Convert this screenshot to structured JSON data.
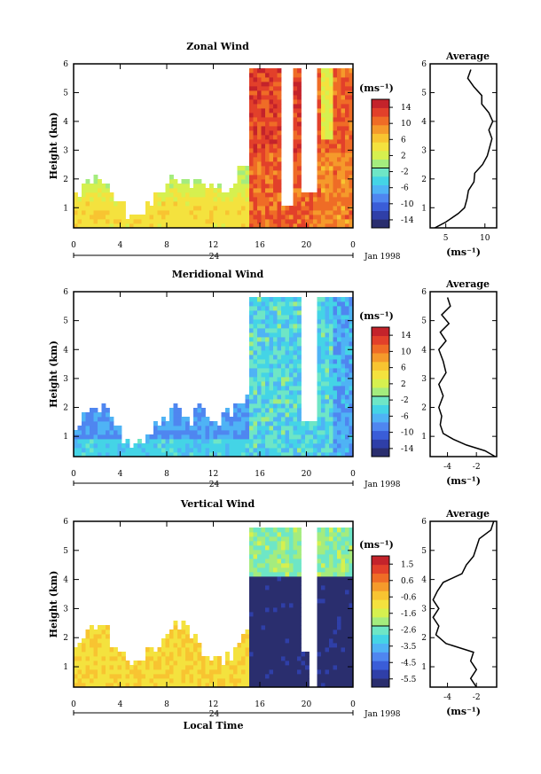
{
  "chart_data": [
    {
      "type": "heatmap",
      "title": "Zonal Wind",
      "ylabel": "Height (km)",
      "x_ticks": [
        "0",
        "4",
        "8",
        "12",
        "16",
        "20",
        "0"
      ],
      "y_ticks": [
        "1",
        "2",
        "3",
        "4",
        "5",
        "6"
      ],
      "xlim": [
        0,
        24
      ],
      "ylim": [
        0.3,
        6
      ],
      "date_label": "Jan 1998",
      "day_marker": "24",
      "colorbar": {
        "unit": "(ms⁻¹)",
        "ticks": [
          "14",
          "10",
          "6",
          "2",
          "-2",
          "-6",
          "-10",
          "-14"
        ],
        "range": [
          -16,
          16
        ]
      },
      "profile": {
        "title": "Average",
        "x_ticks": [
          "5",
          "10"
        ],
        "xlim": [
          3,
          11.5
        ],
        "xlabel": "(ms⁻¹)",
        "height": [
          0.3,
          0.5,
          0.8,
          1.0,
          1.3,
          1.6,
          1.9,
          2.2,
          2.5,
          2.8,
          3.1,
          3.4,
          3.7,
          4.0,
          4.3,
          4.6,
          4.9,
          5.2,
          5.5,
          5.8
        ],
        "value": [
          3.6,
          5.0,
          6.6,
          7.4,
          7.7,
          7.9,
          8.6,
          8.7,
          9.7,
          10.3,
          10.6,
          10.9,
          10.5,
          11.0,
          10.5,
          9.6,
          9.6,
          8.6,
          7.8,
          8.2
        ]
      }
    },
    {
      "type": "heatmap",
      "title": "Meridional Wind",
      "ylabel": "Height (km)",
      "x_ticks": [
        "0",
        "4",
        "8",
        "12",
        "16",
        "20",
        "0"
      ],
      "y_ticks": [
        "1",
        "2",
        "3",
        "4",
        "5",
        "6"
      ],
      "xlim": [
        0,
        24
      ],
      "ylim": [
        0.3,
        6
      ],
      "date_label": "Jan 1998",
      "day_marker": "24",
      "colorbar": {
        "unit": "(ms⁻¹)",
        "ticks": [
          "14",
          "10",
          "6",
          "2",
          "-2",
          "-6",
          "-10",
          "-14"
        ],
        "range": [
          -16,
          16
        ]
      },
      "profile": {
        "title": "Average",
        "x_ticks": [
          "-4",
          "-2"
        ],
        "xlim": [
          -5.2,
          -0.6
        ],
        "xlabel": "(ms⁻¹)",
        "height": [
          0.3,
          0.5,
          0.7,
          0.9,
          1.1,
          1.4,
          1.7,
          2.0,
          2.4,
          2.8,
          3.2,
          3.6,
          4.0,
          4.3,
          4.6,
          4.9,
          5.2,
          5.5,
          5.8
        ],
        "value": [
          -0.7,
          -1.4,
          -2.7,
          -3.6,
          -4.3,
          -4.5,
          -4.4,
          -4.6,
          -4.3,
          -4.6,
          -4.1,
          -4.3,
          -4.6,
          -4.1,
          -4.5,
          -3.9,
          -4.4,
          -3.8,
          -4.0
        ]
      }
    },
    {
      "type": "heatmap",
      "title": "Vertical Wind",
      "ylabel": "Height (km)",
      "xlabel": "Local Time",
      "x_ticks": [
        "0",
        "4",
        "8",
        "12",
        "16",
        "20",
        "0"
      ],
      "y_ticks": [
        "1",
        "2",
        "3",
        "4",
        "5",
        "6"
      ],
      "xlim": [
        0,
        24
      ],
      "ylim": [
        0.3,
        6
      ],
      "date_label": "Jan 1998",
      "day_marker": "24",
      "colorbar": {
        "unit": "(ms⁻¹)",
        "ticks": [
          "1.5",
          "0.6",
          "-0.6",
          "-1.6",
          "-2.6",
          "-3.5",
          "-4.5",
          "-5.5"
        ],
        "range": [
          -6,
          2
        ]
      },
      "profile": {
        "title": "Average",
        "x_ticks": [
          "-4",
          "-2"
        ],
        "xlim": [
          -5.2,
          -0.6
        ],
        "xlabel": "(ms⁻¹)",
        "height": [
          0.3,
          0.6,
          0.9,
          1.2,
          1.5,
          1.8,
          2.1,
          2.4,
          2.7,
          3.0,
          3.3,
          3.6,
          3.9,
          4.2,
          4.5,
          4.8,
          5.1,
          5.4,
          5.7,
          6.0
        ],
        "value": [
          -2.0,
          -2.4,
          -2.0,
          -2.4,
          -2.2,
          -4.1,
          -4.8,
          -4.6,
          -5.0,
          -4.6,
          -5.0,
          -4.7,
          -4.3,
          -3.0,
          -2.7,
          -2.2,
          -2.0,
          -1.8,
          -1.0,
          -0.8
        ]
      }
    }
  ]
}
